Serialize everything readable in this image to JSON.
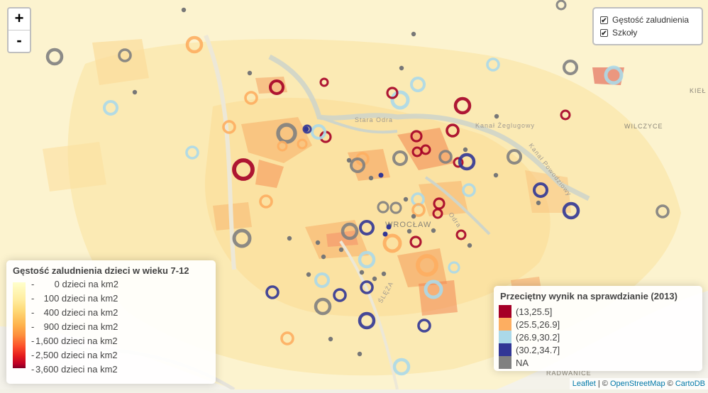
{
  "map": {
    "place_labels": [
      "Stara Odra",
      "Kanał Żeglugowy",
      "Kanał Powodziowy",
      "WILCZYCE",
      "WROCŁAW",
      "Odra",
      "ŚLĘŻA",
      "RADWANICE",
      "KIEŁ"
    ]
  },
  "zoom": {
    "in_label": "+",
    "out_label": "-"
  },
  "layers": {
    "items": [
      {
        "label": "Gęstość zaludnienia",
        "checked": true,
        "check": "✔"
      },
      {
        "label": "Szkoły",
        "checked": true,
        "check": "✔"
      }
    ]
  },
  "legend_density": {
    "title": "Gęstość zaludnienia dzieci w wieku 7-12",
    "labels": [
      "0 dzieci na km2",
      "100 dzieci na km2",
      "400 dzieci na km2",
      "900 dzieci na km2",
      "1,600 dzieci na km2",
      "2,500 dzieci na km2",
      "3,600 dzieci na km2"
    ],
    "colors": [
      "#ffffcc",
      "#800026"
    ]
  },
  "legend_score": {
    "title": "Przeciętny wynik na sprawdzianie (2013)",
    "items": [
      {
        "label": "(13,25.5]",
        "color": "#a50026"
      },
      {
        "label": "(25.5,26.9]",
        "color": "#fdae61"
      },
      {
        "label": "(26.9,30.2]",
        "color": "#abd9e9"
      },
      {
        "label": "(30.2,34.7]",
        "color": "#313695"
      },
      {
        "label": "NA",
        "color": "#808080"
      }
    ]
  },
  "attribution": {
    "leaflet": "Leaflet",
    "sep1": " | © ",
    "osm": "OpenStreetMap",
    "sep2": " © ",
    "carto": "CartoDB"
  }
}
